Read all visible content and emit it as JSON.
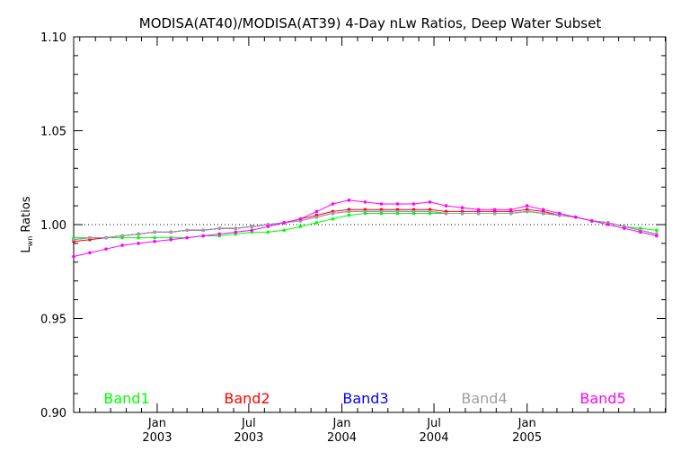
{
  "chart_data": {
    "type": "line",
    "title": "MODISA(AT40)/MODISA(AT39) 4-Day nLw Ratios, Deep Water Subset",
    "ylabel": "L",
    "ylabel_subscript": "wn",
    "ylabel_suffix": " Ratios",
    "ylim": [
      0.9,
      1.1
    ],
    "xlim": [
      "2002-07-20",
      "2005-10-02"
    ],
    "y_ticks": [
      "0.90",
      "0.95",
      "1.00",
      "1.05",
      "1.10"
    ],
    "x_ticks": [
      {
        "date": "2003-01-01",
        "month": "Jan",
        "year": "2003"
      },
      {
        "date": "2003-07-01",
        "month": "Jul",
        "year": "2003"
      },
      {
        "date": "2004-01-01",
        "month": "Jan",
        "year": "2004"
      },
      {
        "date": "2004-07-01",
        "month": "Jul",
        "year": "2004"
      },
      {
        "date": "2005-01-01",
        "month": "Jan",
        "year": "2005"
      }
    ],
    "reference_line": 1.0,
    "x": [
      "2002-07-20",
      "2002-08-21",
      "2002-09-22",
      "2002-10-24",
      "2002-11-25",
      "2002-12-27",
      "2003-01-28",
      "2003-03-01",
      "2003-04-02",
      "2003-05-04",
      "2003-06-05",
      "2003-07-07",
      "2003-08-08",
      "2003-09-09",
      "2003-10-11",
      "2003-11-12",
      "2003-12-14",
      "2004-01-15",
      "2004-02-16",
      "2004-03-19",
      "2004-04-20",
      "2004-05-22",
      "2004-06-23",
      "2004-07-25",
      "2004-08-26",
      "2004-09-27",
      "2004-10-29",
      "2004-11-30",
      "2005-01-01",
      "2005-02-02",
      "2005-03-06",
      "2005-04-07",
      "2005-05-09",
      "2005-06-10",
      "2005-07-12",
      "2005-08-13",
      "2005-09-14"
    ],
    "series": [
      {
        "name": "Band1",
        "color": "#00ff00",
        "values": [
          0.993,
          0.993,
          0.993,
          0.993,
          0.993,
          0.993,
          0.993,
          0.993,
          0.994,
          0.994,
          0.995,
          0.996,
          0.996,
          0.997,
          0.999,
          1.001,
          1.003,
          1.005,
          1.006,
          1.006,
          1.006,
          1.006,
          1.006,
          1.006,
          1.006,
          1.006,
          1.006,
          1.006,
          1.007,
          1.006,
          1.005,
          1.004,
          1.002,
          1.001,
          0.999,
          0.998,
          0.997
        ]
      },
      {
        "name": "Band2",
        "color": "#ff0000",
        "values": [
          0.991,
          0.992,
          0.993,
          0.994,
          0.995,
          0.996,
          0.996,
          0.997,
          0.997,
          0.998,
          0.998,
          0.999,
          1.0,
          1.001,
          1.003,
          1.005,
          1.007,
          1.008,
          1.008,
          1.008,
          1.008,
          1.008,
          1.008,
          1.007,
          1.007,
          1.007,
          1.007,
          1.007,
          1.008,
          1.007,
          1.005,
          1.004,
          1.002,
          1.001,
          0.999,
          0.997,
          0.995
        ]
      },
      {
        "name": "Band3",
        "color": "#0000ff",
        "values": [
          0.992,
          0.993,
          0.993,
          0.994,
          0.995,
          0.996,
          0.996,
          0.997,
          0.997,
          0.998,
          0.998,
          0.999,
          1.0,
          1.001,
          1.002,
          1.004,
          1.006,
          1.007,
          1.007,
          1.007,
          1.007,
          1.007,
          1.007,
          1.006,
          1.006,
          1.006,
          1.006,
          1.006,
          1.007,
          1.006,
          1.005,
          1.004,
          1.002,
          1.001,
          0.999,
          0.997,
          0.995
        ]
      },
      {
        "name": "Band4",
        "color": "#a0a0a0",
        "values": [
          0.992,
          0.993,
          0.993,
          0.994,
          0.995,
          0.996,
          0.996,
          0.997,
          0.997,
          0.998,
          0.998,
          0.999,
          1.0,
          1.001,
          1.002,
          1.004,
          1.006,
          1.007,
          1.007,
          1.007,
          1.007,
          1.007,
          1.007,
          1.006,
          1.006,
          1.006,
          1.006,
          1.006,
          1.007,
          1.006,
          1.005,
          1.004,
          1.002,
          1.001,
          0.999,
          0.997,
          0.995
        ]
      },
      {
        "name": "Band5",
        "color": "#ff00ff",
        "values": [
          0.983,
          0.985,
          0.987,
          0.989,
          0.99,
          0.991,
          0.992,
          0.993,
          0.994,
          0.995,
          0.996,
          0.997,
          0.999,
          1.001,
          1.003,
          1.007,
          1.011,
          1.013,
          1.012,
          1.011,
          1.011,
          1.011,
          1.012,
          1.01,
          1.009,
          1.008,
          1.008,
          1.008,
          1.01,
          1.008,
          1.006,
          1.004,
          1.002,
          1.0,
          0.998,
          0.996,
          0.994
        ]
      }
    ]
  }
}
